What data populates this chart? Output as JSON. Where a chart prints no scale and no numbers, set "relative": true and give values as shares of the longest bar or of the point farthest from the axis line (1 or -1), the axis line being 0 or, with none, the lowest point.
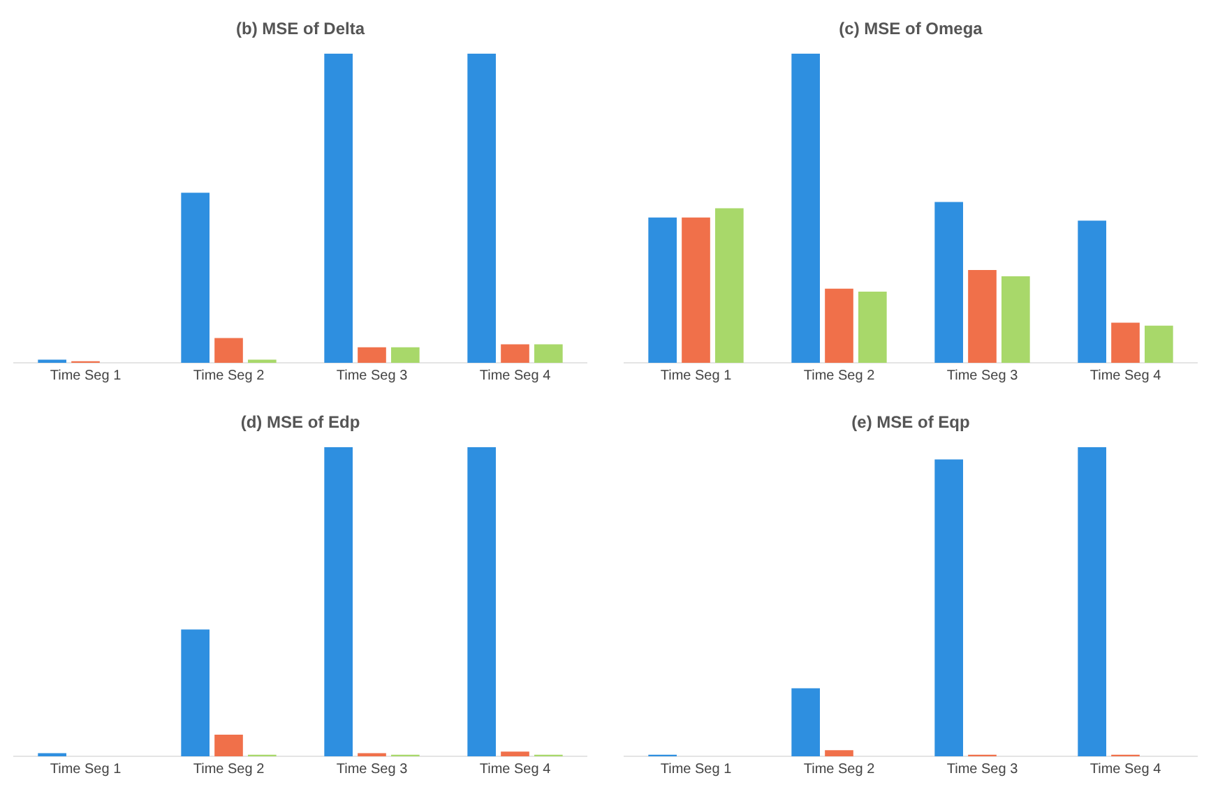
{
  "chart_data": [
    {
      "type": "bar",
      "title": "(b) MSE of Delta",
      "relative": true,
      "grid": false,
      "legend": false,
      "categories": [
        "Time Seg 1",
        "Time Seg 2",
        "Time Seg 3",
        "Time Seg 4"
      ],
      "series": [
        {
          "color": "#2e8fe0",
          "values": [
            0.01,
            0.55,
            1,
            1
          ]
        },
        {
          "color": "#f0704a",
          "values": [
            0.005,
            0.08,
            0.05,
            0.06
          ]
        },
        {
          "color": "#a8d86a",
          "values": [
            0,
            0.01,
            0.05,
            0.06
          ]
        }
      ]
    },
    {
      "type": "bar",
      "title": "(c) MSE of Omega",
      "relative": true,
      "grid": false,
      "legend": false,
      "categories": [
        "Time Seg 1",
        "Time Seg 2",
        "Time Seg 3",
        "Time Seg 4"
      ],
      "series": [
        {
          "color": "#2e8fe0",
          "values": [
            0.47,
            1,
            0.52,
            0.46
          ]
        },
        {
          "color": "#f0704a",
          "values": [
            0.47,
            0.24,
            0.3,
            0.13
          ]
        },
        {
          "color": "#a8d86a",
          "values": [
            0.5,
            0.23,
            0.28,
            0.12
          ]
        }
      ]
    },
    {
      "type": "bar",
      "title": "(d) MSE of Edp",
      "relative": true,
      "grid": false,
      "legend": false,
      "categories": [
        "Time Seg 1",
        "Time Seg 2",
        "Time Seg 3",
        "Time Seg 4"
      ],
      "series": [
        {
          "color": "#2e8fe0",
          "values": [
            0.01,
            0.41,
            1,
            1
          ]
        },
        {
          "color": "#f0704a",
          "values": [
            0,
            0.07,
            0.01,
            0.015
          ]
        },
        {
          "color": "#a8d86a",
          "values": [
            0,
            0.005,
            0.005,
            0.005
          ]
        }
      ]
    },
    {
      "type": "bar",
      "title": "(e) MSE of Eqp",
      "relative": true,
      "grid": false,
      "legend": false,
      "categories": [
        "Time Seg 1",
        "Time Seg 2",
        "Time Seg 3",
        "Time Seg 4"
      ],
      "series": [
        {
          "color": "#2e8fe0",
          "values": [
            0.005,
            0.22,
            0.96,
            1
          ]
        },
        {
          "color": "#f0704a",
          "values": [
            0,
            0.02,
            0.005,
            0.005
          ]
        },
        {
          "color": "#a8d86a",
          "values": [
            0,
            0,
            0,
            0
          ]
        }
      ]
    }
  ]
}
